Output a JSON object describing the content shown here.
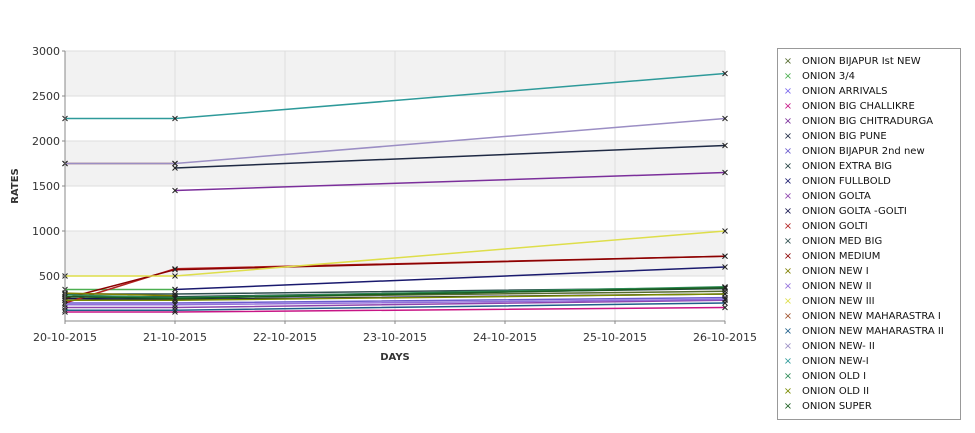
{
  "chart_data": {
    "type": "line",
    "title": "",
    "xlabel": "DAYS",
    "ylabel": "RATES",
    "x": [
      "20-10-2015",
      "21-10-2015",
      "22-10-2015",
      "23-10-2015",
      "24-10-2015",
      "25-10-2015",
      "26-10-2015"
    ],
    "ylim": [
      0,
      3000
    ],
    "yticks": [
      "500",
      "1000",
      "1500",
      "2000",
      "2500",
      "3000"
    ],
    "grid": true,
    "legend_position": "right",
    "series": [
      {
        "name": " ONION BIJAPUR Ist NEW",
        "color": "#556b2f",
        "points": [
          [
            1,
            260
          ],
          [
            6,
            330
          ]
        ]
      },
      {
        "name": "ONION 3/4",
        "color": "#4caf50",
        "points": [
          [
            0,
            350
          ],
          [
            1,
            350
          ]
        ]
      },
      {
        "name": "ONION ARRIVALS",
        "color": "#7b68ee",
        "points": []
      },
      {
        "name": "ONION BIG CHALLIKRE",
        "color": "#c71585",
        "points": [
          [
            0,
            100
          ],
          [
            1,
            100
          ],
          [
            6,
            150
          ]
        ]
      },
      {
        "name": "ONION BIG CHITRADURGA",
        "color": "#7b2f9b",
        "points": [
          [
            1,
            1450
          ],
          [
            6,
            1650
          ]
        ]
      },
      {
        "name": "ONION BIG PUNE",
        "color": "#1f2a44",
        "points": [
          [
            1,
            1700
          ],
          [
            6,
            1950
          ]
        ]
      },
      {
        "name": "ONION BIJAPUR 2nd new",
        "color": "#6a5acd",
        "points": [
          [
            0,
            200
          ],
          [
            1,
            200
          ],
          [
            6,
            260
          ]
        ]
      },
      {
        "name": "ONION EXTRA BIG",
        "color": "#1f3d3d",
        "points": [
          [
            0,
            270
          ],
          [
            1,
            270
          ],
          [
            6,
            360
          ]
        ]
      },
      {
        "name": "ONION FULLBOLD",
        "color": "#1a1a6e",
        "points": [
          [
            1,
            350
          ],
          [
            6,
            600
          ]
        ]
      },
      {
        "name": "ONION GOLTA",
        "color": "#8e44ad",
        "points": [
          [
            0,
            150
          ],
          [
            1,
            150
          ],
          [
            6,
            230
          ]
        ]
      },
      {
        "name": "ONION GOLTA -GOLTI",
        "color": "#15154f",
        "points": [
          [
            0,
            250
          ],
          [
            1,
            240
          ],
          [
            6,
            300
          ]
        ]
      },
      {
        "name": "ONION GOLTI",
        "color": "#b22222",
        "points": [
          [
            0,
            200
          ],
          [
            1,
            580
          ],
          [
            6,
            720
          ]
        ]
      },
      {
        "name": "ONION MED BIG",
        "color": "#2f4f4f",
        "points": [
          [
            0,
            300
          ],
          [
            1,
            300
          ],
          [
            6,
            370
          ]
        ]
      },
      {
        "name": "ONION MEDIUM",
        "color": "#8b0000",
        "points": [
          [
            0,
            250
          ],
          [
            1,
            570
          ],
          [
            6,
            720
          ]
        ]
      },
      {
        "name": "ONION NEW I",
        "color": "#808000",
        "points": [
          [
            0,
            310
          ],
          [
            1,
            280
          ]
        ]
      },
      {
        "name": "ONION NEW II",
        "color": "#9370db",
        "points": [
          [
            0,
            180
          ],
          [
            1,
            180
          ],
          [
            6,
            240
          ]
        ]
      },
      {
        "name": "ONION NEW III",
        "color": "#dede4a",
        "points": [
          [
            0,
            500
          ],
          [
            1,
            500
          ],
          [
            6,
            1000
          ]
        ]
      },
      {
        "name": "ONION NEW MAHARASTRA I",
        "color": "#a0522d",
        "points": [
          [
            0,
            1750
          ],
          [
            1,
            1750
          ]
        ]
      },
      {
        "name": "ONION NEW MAHARASTRA II",
        "color": "#1f5f8b",
        "points": [
          [
            0,
            120
          ],
          [
            1,
            120
          ],
          [
            6,
            200
          ]
        ]
      },
      {
        "name": "ONION NEW- II",
        "color": "#9b8ec4",
        "points": [
          [
            0,
            1750
          ],
          [
            1,
            1750
          ],
          [
            6,
            2250
          ]
        ]
      },
      {
        "name": "ONION NEW-I",
        "color": "#2e9a9a",
        "points": [
          [
            0,
            2250
          ],
          [
            1,
            2250
          ],
          [
            6,
            2750
          ]
        ]
      },
      {
        "name": "ONION OLD I",
        "color": "#2e8b57",
        "points": [
          [
            0,
            290
          ],
          [
            1,
            260
          ],
          [
            6,
            380
          ]
        ]
      },
      {
        "name": "ONION OLD II",
        "color": "#7a8b00",
        "points": [
          [
            0,
            230
          ],
          [
            1,
            230
          ],
          [
            6,
            300
          ]
        ]
      },
      {
        "name": "ONION SUPER",
        "color": "#1b5e20",
        "points": [
          [
            0,
            270
          ],
          [
            1,
            250
          ],
          [
            6,
            370
          ]
        ]
      }
    ]
  }
}
